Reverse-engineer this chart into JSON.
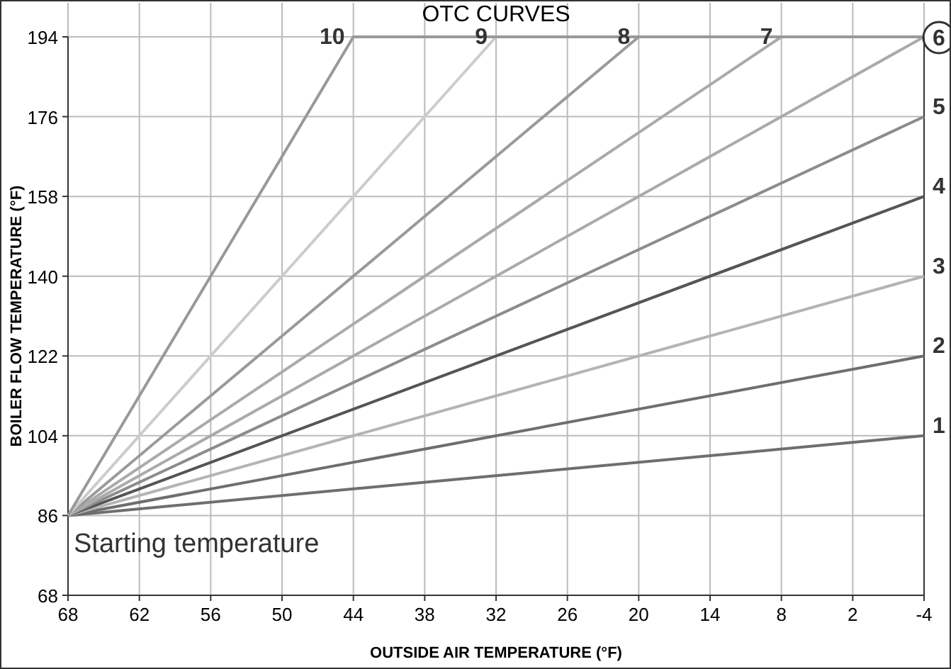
{
  "chart_data": {
    "type": "line",
    "title": "OTC CURVES",
    "xlabel": "OUTSIDE AIR TEMPERATURE (°F)",
    "ylabel": "BOILER FLOW TEMPERATURE (°F)",
    "xlim": [
      68,
      -4
    ],
    "xticks": [
      68,
      62,
      56,
      50,
      44,
      38,
      32,
      26,
      20,
      14,
      8,
      2,
      -4
    ],
    "ylim": [
      68,
      194
    ],
    "yticks": [
      68,
      86,
      104,
      122,
      140,
      158,
      176,
      194
    ],
    "grid": true,
    "marker": "none",
    "line_style": "solid",
    "annotations": [
      {
        "text": "Starting temperature",
        "x": 68,
        "y": 86
      }
    ],
    "series": [
      {
        "name": "1",
        "color": "#6e6e6e",
        "x": [
          68,
          -4
        ],
        "values": [
          86,
          104
        ]
      },
      {
        "name": "2",
        "color": "#6e6e6e",
        "x": [
          68,
          -4
        ],
        "values": [
          86,
          122
        ]
      },
      {
        "name": "3",
        "color": "#b4b4b4",
        "x": [
          68,
          -4
        ],
        "values": [
          86,
          140
        ]
      },
      {
        "name": "4",
        "color": "#555555",
        "x": [
          68,
          -4
        ],
        "values": [
          86,
          158
        ]
      },
      {
        "name": "5",
        "color": "#8c8c8c",
        "x": [
          68,
          -4
        ],
        "values": [
          86,
          176
        ]
      },
      {
        "name": "6",
        "color": "#aaaaaa",
        "x": [
          68,
          -4
        ],
        "values": [
          86,
          194
        ]
      },
      {
        "name": "7",
        "color": "#aaaaaa",
        "x": [
          68,
          8,
          -4
        ],
        "values": [
          86,
          194,
          194
        ]
      },
      {
        "name": "8",
        "color": "#9a9a9a",
        "x": [
          68,
          20,
          -4
        ],
        "values": [
          86,
          194,
          194
        ]
      },
      {
        "name": "9",
        "color": "#cccccc",
        "x": [
          68,
          32,
          -4
        ],
        "values": [
          86,
          194,
          194
        ]
      },
      {
        "name": "10",
        "color": "#999999",
        "x": [
          68,
          44,
          -4
        ],
        "values": [
          86,
          194,
          194
        ]
      }
    ]
  }
}
